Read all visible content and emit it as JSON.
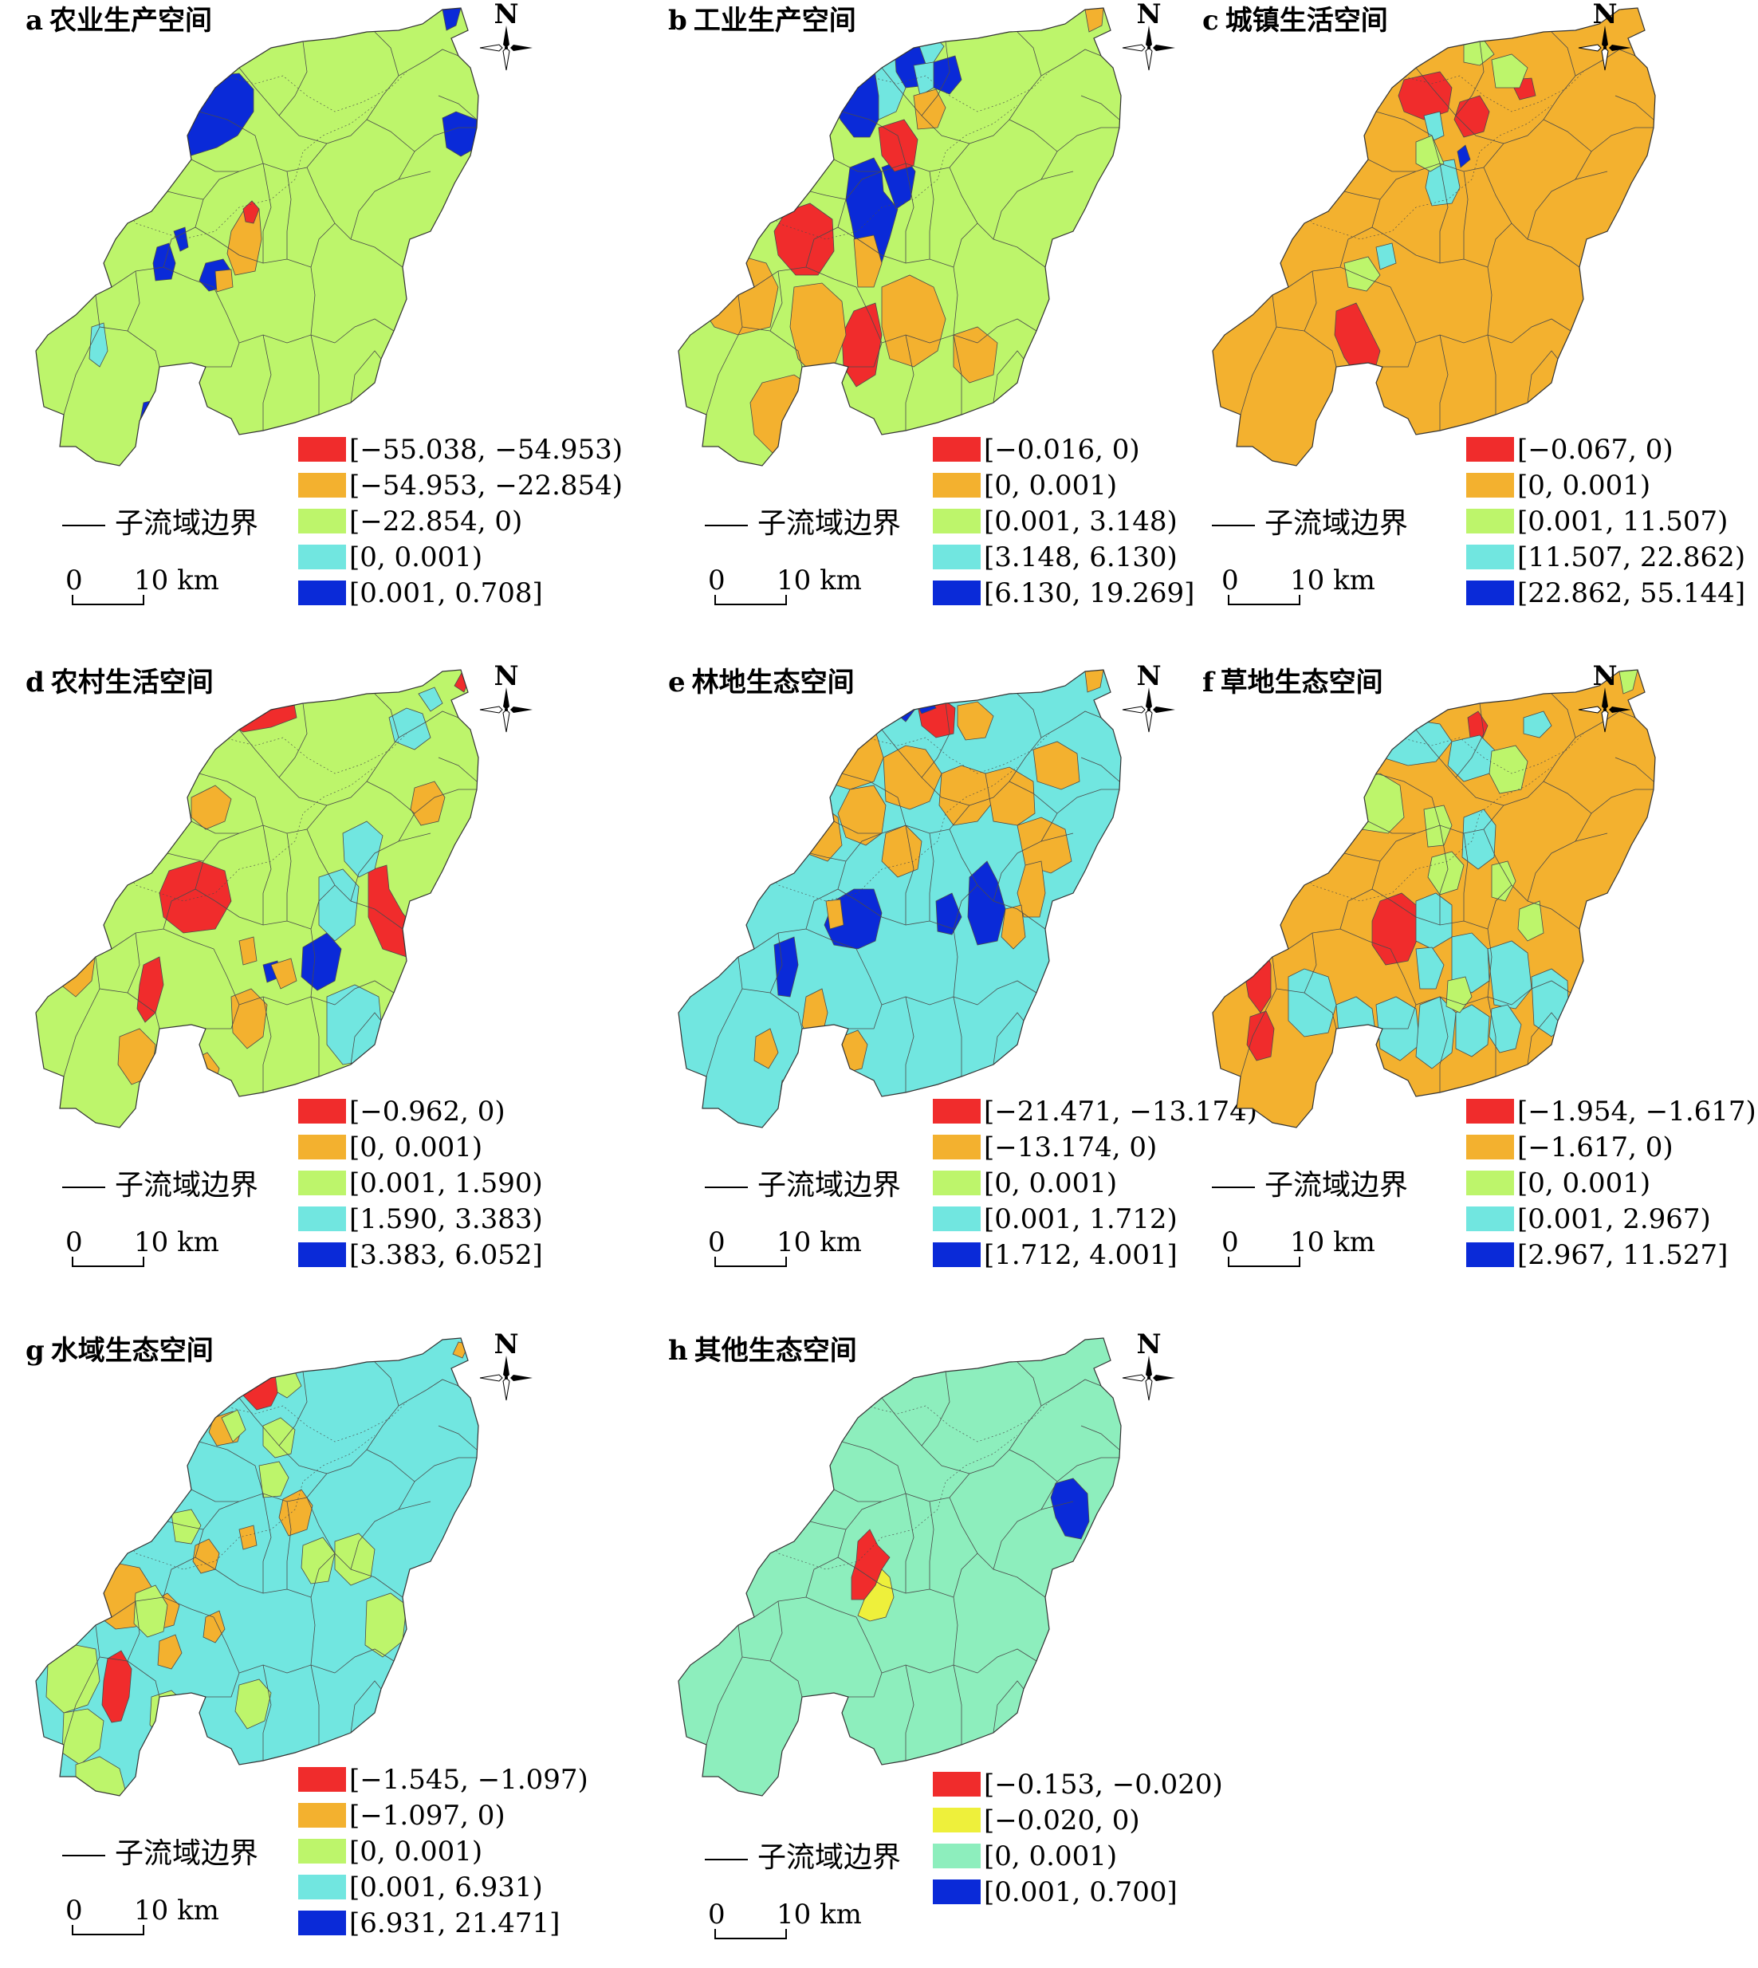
{
  "colors": {
    "red": "#f02c2c",
    "orange": "#f3b12f",
    "green": "#bdf56b",
    "cyan": "#71e6e0",
    "blue": "#0a2ad8",
    "yellow": "#eef03b",
    "mint": "#8deebd",
    "boundary": "#4a4a4a"
  },
  "common": {
    "north": "N",
    "boundary_label": "子流域边界",
    "scale_zero": "0",
    "scale_ten": "10 km"
  },
  "panels": [
    {
      "letter": "a",
      "title": "农业生产空间",
      "legend": [
        {
          "color": "red",
          "label": "[−55.038, −54.953)"
        },
        {
          "color": "orange",
          "label": "[−54.953, −22.854)"
        },
        {
          "color": "green",
          "label": "[−22.854, 0)"
        },
        {
          "color": "cyan",
          "label": "[0, 0.001)"
        },
        {
          "color": "blue",
          "label": "[0.001, 0.708]"
        }
      ]
    },
    {
      "letter": "b",
      "title": "工业生产空间",
      "legend": [
        {
          "color": "red",
          "label": "[−0.016, 0)"
        },
        {
          "color": "orange",
          "label": "[0, 0.001)"
        },
        {
          "color": "green",
          "label": "[0.001, 3.148)"
        },
        {
          "color": "cyan",
          "label": "[3.148, 6.130)"
        },
        {
          "color": "blue",
          "label": "[6.130, 19.269]"
        }
      ]
    },
    {
      "letter": "c",
      "title": "城镇生活空间",
      "legend": [
        {
          "color": "red",
          "label": "[−0.067, 0)"
        },
        {
          "color": "orange",
          "label": "[0, 0.001)"
        },
        {
          "color": "green",
          "label": "[0.001, 11.507)"
        },
        {
          "color": "cyan",
          "label": "[11.507, 22.862)"
        },
        {
          "color": "blue",
          "label": "[22.862, 55.144]"
        }
      ]
    },
    {
      "letter": "d",
      "title": "农村生活空间",
      "legend": [
        {
          "color": "red",
          "label": "[−0.962, 0)"
        },
        {
          "color": "orange",
          "label": "[0, 0.001)"
        },
        {
          "color": "green",
          "label": "[0.001, 1.590)"
        },
        {
          "color": "cyan",
          "label": "[1.590, 3.383)"
        },
        {
          "color": "blue",
          "label": "[3.383, 6.052]"
        }
      ]
    },
    {
      "letter": "e",
      "title": "林地生态空间",
      "legend": [
        {
          "color": "red",
          "label": "[−21.471, −13.174)"
        },
        {
          "color": "orange",
          "label": "[−13.174, 0)"
        },
        {
          "color": "green",
          "label": "[0, 0.001)"
        },
        {
          "color": "cyan",
          "label": "[0.001, 1.712)"
        },
        {
          "color": "blue",
          "label": "[1.712, 4.001]"
        }
      ]
    },
    {
      "letter": "f",
      "title": "草地生态空间",
      "legend": [
        {
          "color": "red",
          "label": "[−1.954, −1.617)"
        },
        {
          "color": "orange",
          "label": "[−1.617, 0)"
        },
        {
          "color": "green",
          "label": "[0, 0.001)"
        },
        {
          "color": "cyan",
          "label": "[0.001, 2.967)"
        },
        {
          "color": "blue",
          "label": "[2.967, 11.527]"
        }
      ]
    },
    {
      "letter": "g",
      "title": "水域生态空间",
      "legend": [
        {
          "color": "red",
          "label": "[−1.545, −1.097)"
        },
        {
          "color": "orange",
          "label": "[−1.097, 0)"
        },
        {
          "color": "green",
          "label": "[0, 0.001)"
        },
        {
          "color": "cyan",
          "label": "[0.001, 6.931)"
        },
        {
          "color": "blue",
          "label": "[6.931, 21.471]"
        }
      ]
    },
    {
      "letter": "h",
      "title": "其他生态空间",
      "legend": [
        {
          "color": "red",
          "label": "[−0.153, −0.020)"
        },
        {
          "color": "yellow",
          "label": "[−0.020, 0)"
        },
        {
          "color": "mint",
          "label": "[0, 0.001)"
        },
        {
          "color": "blue",
          "label": "[0.001, 0.700]"
        }
      ]
    }
  ]
}
